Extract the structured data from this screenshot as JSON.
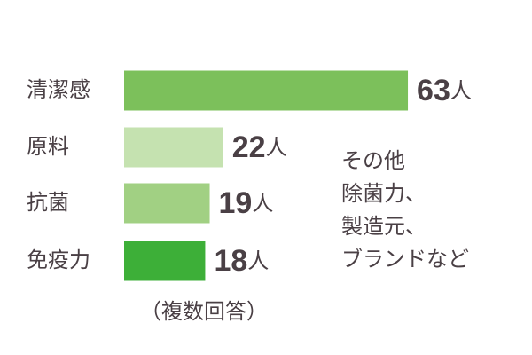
{
  "chart_data": {
    "type": "bar",
    "orientation": "horizontal",
    "categories": [
      "清潔感",
      "原料",
      "抗菌",
      "免疫力"
    ],
    "values": [
      63,
      22,
      19,
      18
    ],
    "value_labels": [
      "63人",
      "22人",
      "19人",
      "18人"
    ],
    "colors": [
      "#7cc05b",
      "#c5e2b0",
      "#a1d083",
      "#3daf38"
    ],
    "annotation": [
      "その他",
      "除菌力、",
      "製造元、",
      "ブランドなど"
    ],
    "note": "（複数回答）"
  }
}
